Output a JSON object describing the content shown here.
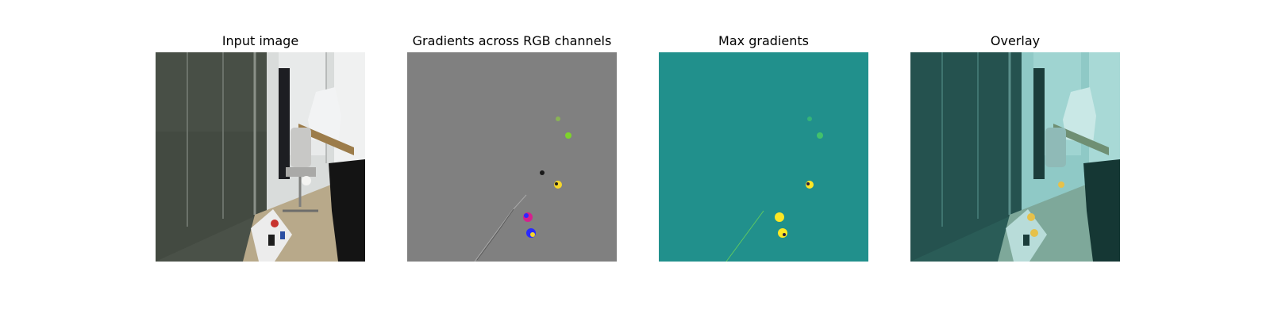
{
  "panels": [
    {
      "title": "Input image",
      "kind": "photo"
    },
    {
      "title": "Gradients across RGB channels",
      "kind": "rgb-gradients"
    },
    {
      "title": "Max gradients",
      "kind": "max-gradients"
    },
    {
      "title": "Overlay",
      "kind": "overlay"
    }
  ],
  "colors": {
    "gradient_bg": "#808080",
    "max_grad_bg": "#21908c",
    "max_grad_high": "#fde725",
    "overlay_tint": "#2a9d97"
  }
}
